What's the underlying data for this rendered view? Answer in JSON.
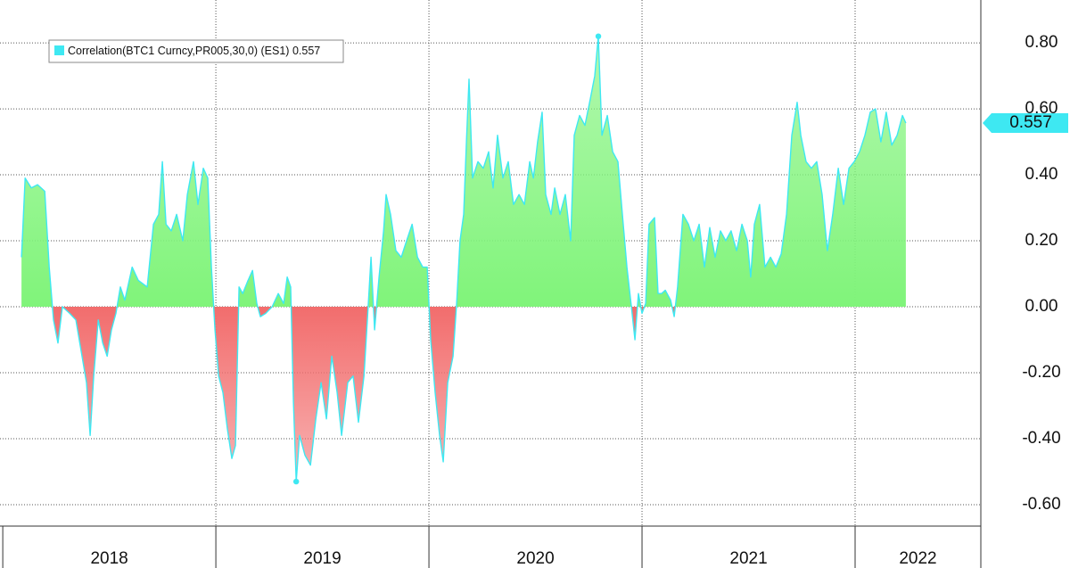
{
  "chart_data": {
    "type": "area",
    "xlim": [
      2017.987,
      2022.59
    ],
    "ylim": [
      -0.665,
      0.93
    ],
    "xticks": [
      {
        "value": 2018,
        "label": "2018"
      },
      {
        "value": 2019,
        "label": "2019"
      },
      {
        "value": 2020,
        "label": "2020"
      },
      {
        "value": 2021,
        "label": "2021"
      },
      {
        "value": 2022,
        "label": "2022"
      }
    ],
    "yticks": [
      {
        "value": -0.6,
        "label": "-0.60"
      },
      {
        "value": -0.4,
        "label": "-0.40"
      },
      {
        "value": -0.2,
        "label": "-0.20"
      },
      {
        "value": 0,
        "label": "0.00"
      },
      {
        "value": 0.2,
        "label": "0.20"
      },
      {
        "value": 0.4,
        "label": "0.40"
      },
      {
        "value": 0.6,
        "label": "0.60"
      },
      {
        "value": 0.8,
        "label": "0.80"
      }
    ],
    "grid": true,
    "legend": "top-left",
    "last_value_label": "0.557",
    "positive_color": "#80f47a",
    "negative_color": "#f26d6d",
    "series": [
      {
        "name": "Correlation(BTC1 Curncy,PR005,30,0) (ES1)",
        "color": "#3ee8f2",
        "x": [
          2018.088,
          2018.105,
          2018.134,
          2018.163,
          2018.197,
          2018.218,
          2018.238,
          2018.259,
          2018.28,
          2018.314,
          2018.343,
          2018.372,
          2018.393,
          2018.41,
          2018.427,
          2018.448,
          2018.469,
          2018.49,
          2018.51,
          2018.531,
          2018.552,
          2018.573,
          2018.607,
          2018.636,
          2018.678,
          2018.707,
          2018.732,
          2018.749,
          2018.766,
          2018.791,
          2018.816,
          2018.845,
          2018.866,
          2018.895,
          2018.916,
          2018.941,
          2018.962,
          2018.979,
          2018.996,
          2019.013,
          2019.033,
          2019.054,
          2019.075,
          2019.092,
          2019.109,
          2019.126,
          2019.151,
          2019.172,
          2019.192,
          2019.209,
          2019.234,
          2019.264,
          2019.293,
          2019.318,
          2019.335,
          2019.351,
          2019.364,
          2019.377,
          2019.393,
          2019.418,
          2019.444,
          2019.469,
          2019.494,
          2019.519,
          2019.544,
          2019.569,
          2019.59,
          2019.619,
          2019.644,
          2019.669,
          2019.695,
          2019.711,
          2019.728,
          2019.745,
          2019.766,
          2019.787,
          2019.799,
          2019.82,
          2019.845,
          2019.87,
          2019.895,
          2019.921,
          2019.946,
          2019.971,
          2019.992,
          2020.008,
          2020.029,
          2020.05,
          2020.067,
          2020.088,
          2020.113,
          2020.13,
          2020.146,
          2020.163,
          2020.176,
          2020.188,
          2020.205,
          2020.23,
          2020.255,
          2020.28,
          2020.301,
          2020.322,
          2020.347,
          2020.372,
          2020.397,
          2020.423,
          2020.448,
          2020.473,
          2020.49,
          2020.51,
          2020.531,
          2020.548,
          2020.573,
          2020.59,
          2020.615,
          2020.64,
          2020.665,
          2020.682,
          2020.707,
          2020.732,
          2020.757,
          2020.778,
          2020.795,
          2020.812,
          2020.837,
          2020.862,
          2020.887,
          2020.908,
          2020.929,
          2020.95,
          2020.967,
          2020.983,
          2021.0,
          2021.017,
          2021.033,
          2021.059,
          2021.075,
          2021.092,
          2021.109,
          2021.134,
          2021.151,
          2021.167,
          2021.192,
          2021.218,
          2021.243,
          2021.268,
          2021.293,
          2021.318,
          2021.343,
          2021.368,
          2021.393,
          2021.418,
          2021.444,
          2021.469,
          2021.494,
          2021.51,
          2021.527,
          2021.552,
          2021.577,
          2021.603,
          2021.628,
          2021.653,
          2021.678,
          2021.703,
          2021.728,
          2021.745,
          2021.77,
          2021.795,
          2021.82,
          2021.845,
          2021.87,
          2021.895,
          2021.921,
          2021.946,
          2021.971,
          2021.996,
          2022.021,
          2022.046,
          2022.071,
          2022.096,
          2022.121,
          2022.146,
          2022.172,
          2022.197,
          2022.222,
          2022.238
        ],
        "values": [
          0.15,
          0.39,
          0.36,
          0.37,
          0.35,
          0.12,
          -0.04,
          -0.11,
          0.0,
          -0.02,
          -0.04,
          -0.15,
          -0.23,
          -0.39,
          -0.21,
          -0.04,
          -0.11,
          -0.15,
          -0.07,
          -0.02,
          0.06,
          0.02,
          0.12,
          0.08,
          0.06,
          0.25,
          0.28,
          0.44,
          0.25,
          0.23,
          0.28,
          0.2,
          0.34,
          0.44,
          0.31,
          0.42,
          0.39,
          0.12,
          -0.07,
          -0.21,
          -0.26,
          -0.37,
          -0.46,
          -0.42,
          0.06,
          0.04,
          0.08,
          0.11,
          0.01,
          -0.03,
          -0.02,
          0.0,
          0.04,
          0.01,
          0.09,
          0.06,
          -0.29,
          -0.53,
          -0.39,
          -0.45,
          -0.48,
          -0.34,
          -0.23,
          -0.34,
          -0.15,
          -0.26,
          -0.39,
          -0.23,
          -0.21,
          -0.35,
          -0.21,
          -0.04,
          0.15,
          -0.07,
          0.09,
          0.23,
          0.34,
          0.28,
          0.17,
          0.15,
          0.2,
          0.25,
          0.15,
          0.12,
          0.12,
          -0.1,
          -0.26,
          -0.39,
          -0.47,
          -0.23,
          -0.15,
          0.01,
          0.2,
          0.28,
          0.5,
          0.69,
          0.39,
          0.44,
          0.42,
          0.47,
          0.36,
          0.52,
          0.39,
          0.44,
          0.31,
          0.34,
          0.31,
          0.44,
          0.39,
          0.5,
          0.59,
          0.34,
          0.28,
          0.36,
          0.28,
          0.34,
          0.2,
          0.52,
          0.58,
          0.55,
          0.63,
          0.7,
          0.82,
          0.52,
          0.58,
          0.47,
          0.44,
          0.28,
          0.12,
          0.0,
          -0.1,
          0.04,
          -0.02,
          0.01,
          0.25,
          0.27,
          0.04,
          0.04,
          0.05,
          0.02,
          -0.03,
          0.06,
          0.28,
          0.25,
          0.2,
          0.25,
          0.12,
          0.24,
          0.15,
          0.23,
          0.2,
          0.23,
          0.17,
          0.25,
          0.2,
          0.09,
          0.25,
          0.31,
          0.12,
          0.15,
          0.12,
          0.16,
          0.28,
          0.52,
          0.62,
          0.52,
          0.44,
          0.42,
          0.44,
          0.34,
          0.17,
          0.28,
          0.42,
          0.31,
          0.42,
          0.44,
          0.47,
          0.52,
          0.59,
          0.6,
          0.5,
          0.59,
          0.49,
          0.52,
          0.58,
          0.557
        ]
      }
    ]
  }
}
